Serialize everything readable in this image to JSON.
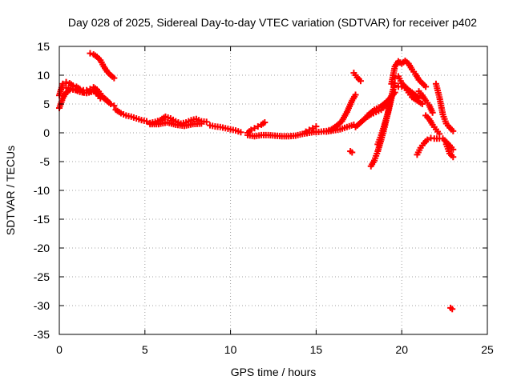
{
  "chart_data": {
    "type": "scatter",
    "title": "Day 028 of 2025, Sidereal Day-to-day VTEC variation (SDTVAR) for receiver p402",
    "xlabel": "GPS time / hours",
    "ylabel": "SDTVAR / TECUs",
    "xlim": [
      0,
      25
    ],
    "ylim": [
      -35,
      15
    ],
    "xticks": [
      0,
      5,
      10,
      15,
      20,
      25
    ],
    "yticks": [
      15,
      10,
      5,
      0,
      -5,
      -10,
      -15,
      -20,
      -25,
      -30,
      -35
    ],
    "grid": true,
    "marker": "plus",
    "color": "#ff0000",
    "segments": [
      {
        "name": "early-arc-a",
        "x": [
          0.0,
          0.2,
          0.4,
          0.6,
          0.8,
          1.0,
          1.2,
          1.4,
          1.6,
          1.8,
          2.0,
          2.2,
          2.4,
          2.6,
          2.8,
          3.0,
          3.2
        ],
        "y": [
          6.5,
          8.5,
          8.8,
          8.6,
          8.2,
          8.0,
          7.6,
          7.4,
          7.4,
          7.6,
          7.9,
          7.5,
          6.8,
          6.0,
          5.5,
          5.0,
          4.7
        ]
      },
      {
        "name": "early-arc-b",
        "x": [
          0.0,
          0.2,
          0.4,
          0.6,
          0.8,
          1.0,
          1.2,
          1.4,
          1.6,
          1.8,
          2.0,
          2.2,
          2.4
        ],
        "y": [
          4.3,
          6.0,
          7.0,
          7.4,
          7.5,
          7.4,
          7.2,
          7.0,
          7.0,
          7.2,
          7.5,
          6.8,
          6.0
        ]
      },
      {
        "name": "early-arc-c",
        "x": [
          0.4,
          0.8,
          1.2,
          1.6,
          2.0,
          2.4,
          2.8
        ],
        "y": [
          7.8,
          7.6,
          7.1,
          6.9,
          7.2,
          6.5,
          5.6
        ]
      },
      {
        "name": "early-peak",
        "x": [
          1.8,
          2.0,
          2.2,
          2.4,
          2.6,
          2.8,
          3.0,
          3.2
        ],
        "y": [
          13.8,
          13.6,
          13.2,
          12.6,
          11.5,
          10.6,
          10.0,
          9.5
        ]
      },
      {
        "name": "descent-to-5h",
        "x": [
          3.3,
          3.6,
          3.9,
          4.2,
          4.5,
          4.8,
          5.1
        ],
        "y": [
          4.0,
          3.4,
          3.0,
          2.8,
          2.5,
          2.2,
          2.0
        ]
      },
      {
        "name": "plateau-5-9h",
        "x": [
          5.3,
          5.6,
          5.9,
          6.2,
          6.5,
          6.8,
          7.1,
          7.4,
          7.7,
          8.0,
          8.3,
          8.6
        ],
        "y": [
          1.7,
          1.9,
          2.2,
          2.8,
          2.5,
          2.0,
          1.6,
          1.8,
          2.2,
          2.4,
          2.0,
          1.9
        ]
      },
      {
        "name": "plateau-lower",
        "x": [
          5.3,
          5.8,
          6.3,
          6.8,
          7.3,
          7.8,
          8.3
        ],
        "y": [
          1.5,
          1.5,
          1.8,
          1.4,
          1.2,
          1.5,
          1.6
        ]
      },
      {
        "name": "decline-9-11h",
        "x": [
          8.8,
          9.1,
          9.4,
          9.7,
          10.0,
          10.3,
          10.6
        ],
        "y": [
          1.3,
          1.1,
          1.0,
          0.8,
          0.6,
          0.4,
          0.1
        ]
      },
      {
        "name": "midday-low",
        "x": [
          11.0,
          11.4,
          11.8,
          12.2,
          12.6,
          13.0,
          13.4,
          13.8,
          14.2,
          14.6,
          15.0
        ],
        "y": [
          -0.4,
          -0.6,
          -0.4,
          -0.4,
          -0.5,
          -0.6,
          -0.6,
          -0.5,
          -0.2,
          0.0,
          0.2
        ]
      },
      {
        "name": "bump-11-12h",
        "x": [
          11.0,
          11.2,
          11.4,
          11.6,
          11.8,
          12.0
        ],
        "y": [
          0.0,
          0.5,
          0.8,
          1.1,
          1.4,
          1.8
        ]
      },
      {
        "name": "bump-14-15h",
        "x": [
          14.4,
          14.6,
          14.8,
          15.0
        ],
        "y": [
          0.2,
          0.5,
          0.8,
          1.1
        ]
      },
      {
        "name": "rise-15-17h",
        "x": [
          15.0,
          15.3,
          15.6,
          15.9,
          16.2,
          16.5,
          16.8,
          17.1,
          17.3
        ],
        "y": [
          0.1,
          0.2,
          0.3,
          0.6,
          1.2,
          2.0,
          3.6,
          5.6,
          6.6
        ]
      },
      {
        "name": "rise-15-17h-b",
        "x": [
          15.6,
          16.0,
          16.4,
          16.8,
          17.2
        ],
        "y": [
          0.2,
          0.4,
          0.6,
          1.0,
          1.4
        ]
      },
      {
        "name": "isolated-17h",
        "x": [
          17.2,
          17.4,
          17.6
        ],
        "y": [
          10.4,
          9.6,
          9.0
        ]
      },
      {
        "name": "isolated-17h-low",
        "x": [
          17.0,
          17.1
        ],
        "y": [
          -3.2,
          -3.4
        ]
      },
      {
        "name": "arc-17-19h",
        "x": [
          17.3,
          17.6,
          17.9,
          18.2,
          18.5,
          18.8,
          19.1,
          19.4
        ],
        "y": [
          1.0,
          1.8,
          2.6,
          3.2,
          3.6,
          4.0,
          5.0,
          6.2
        ]
      },
      {
        "name": "steep-rise",
        "x": [
          18.2,
          18.4,
          18.6,
          18.8,
          19.0,
          19.2,
          19.4,
          19.6
        ],
        "y": [
          -5.8,
          -4.8,
          -3.2,
          -1.2,
          1.0,
          3.6,
          6.4,
          8.6
        ]
      },
      {
        "name": "steep-rise-b",
        "x": [
          18.6,
          18.8,
          19.0,
          19.2,
          19.4
        ],
        "y": [
          -2.0,
          -0.4,
          1.5,
          3.5,
          6.0
        ]
      },
      {
        "name": "arc-18-19h-mid",
        "x": [
          18.0,
          18.4,
          18.8,
          19.2,
          19.6
        ],
        "y": [
          3.0,
          4.0,
          4.6,
          5.6,
          7.0
        ]
      },
      {
        "name": "peak-20h",
        "x": [
          19.4,
          19.6,
          19.8,
          20.0,
          20.2,
          20.4,
          20.6,
          20.8,
          21.0,
          21.2,
          21.4
        ],
        "y": [
          8.5,
          11.5,
          12.4,
          12.0,
          12.5,
          12.0,
          11.0,
          10.2,
          9.2,
          8.6,
          8.0
        ]
      },
      {
        "name": "decline-20-21h",
        "x": [
          19.6,
          19.8,
          20.0,
          20.2,
          20.4,
          20.6,
          20.8,
          21.0
        ],
        "y": [
          9.5,
          9.8,
          8.6,
          8.0,
          7.4,
          7.0,
          6.5,
          6.0
        ]
      },
      {
        "name": "decline-20-21h-b",
        "x": [
          19.8,
          20.0,
          20.2,
          20.4,
          20.6,
          20.8,
          21.0,
          21.2
        ],
        "y": [
          8.0,
          8.0,
          7.8,
          7.0,
          6.2,
          5.8,
          5.4,
          5.0
        ]
      },
      {
        "name": "decline-21-22h",
        "x": [
          21.0,
          21.2,
          21.4,
          21.6,
          21.8
        ],
        "y": [
          7.2,
          6.5,
          5.6,
          4.8,
          3.5
        ]
      },
      {
        "name": "drop-21-22h",
        "x": [
          21.4,
          21.6,
          21.8,
          22.0,
          22.2
        ],
        "y": [
          3.0,
          2.4,
          1.4,
          0.6,
          -0.2
        ]
      },
      {
        "name": "low-arc-21-22h",
        "x": [
          20.9,
          21.1,
          21.3,
          21.5,
          21.7,
          21.9,
          22.2
        ],
        "y": [
          -3.8,
          -2.6,
          -1.8,
          -1.2,
          -0.9,
          -1.0,
          -1.0
        ]
      },
      {
        "name": "late-arc-22-23h",
        "x": [
          22.0,
          22.2,
          22.4,
          22.6,
          22.8,
          23.0
        ],
        "y": [
          8.5,
          6.2,
          3.2,
          1.6,
          0.9,
          0.3
        ]
      },
      {
        "name": "late-arc-22-23h-b",
        "x": [
          22.4,
          22.6,
          22.8,
          23.0
        ],
        "y": [
          -1.0,
          -1.6,
          -2.2,
          -2.9
        ]
      },
      {
        "name": "late-arc-22-23h-c",
        "x": [
          22.6,
          22.8,
          23.0
        ],
        "y": [
          -2.0,
          -3.6,
          -4.2
        ]
      },
      {
        "name": "outlier-23h",
        "x": [
          22.85,
          22.95
        ],
        "y": [
          -30.4,
          -30.6
        ]
      }
    ]
  }
}
